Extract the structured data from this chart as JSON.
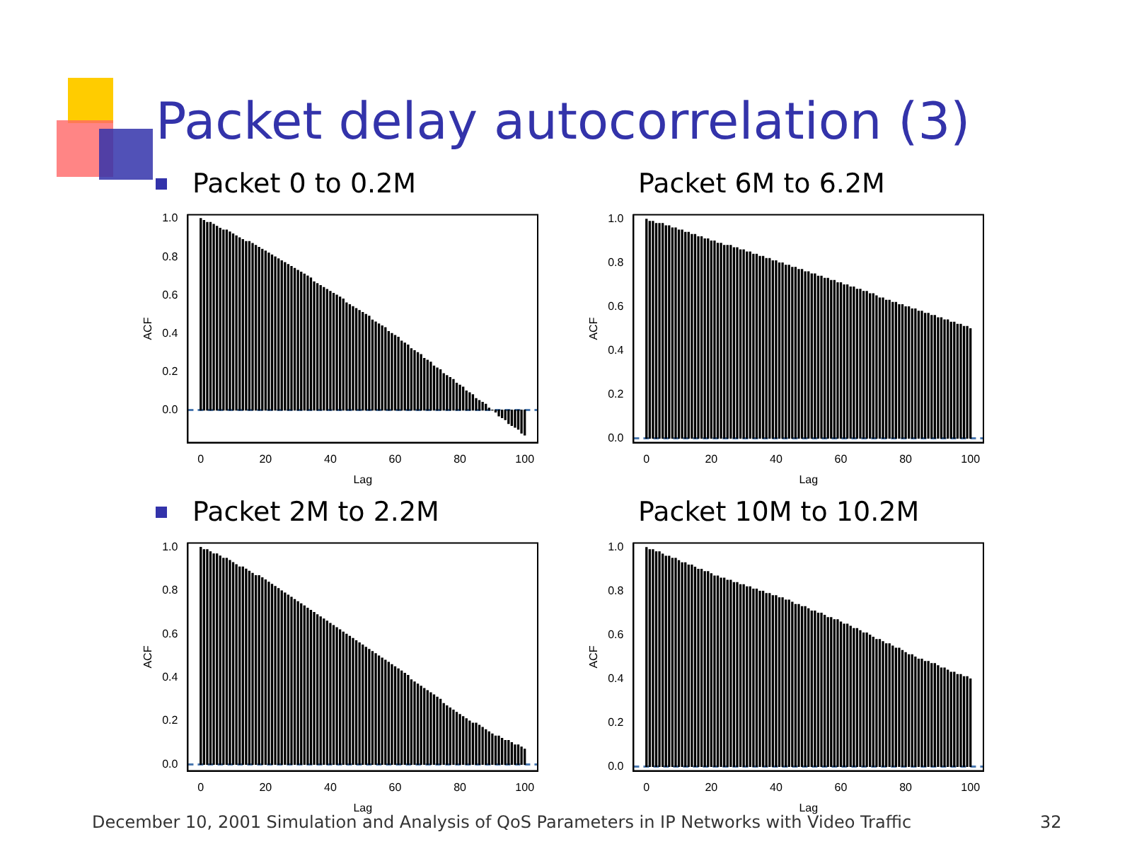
{
  "chart_data": [
    {
      "type": "bar",
      "title": "Packet 0 to 0.2M",
      "xlabel": "Lag",
      "ylabel": "ACF",
      "color": "#000000",
      "grid": false,
      "legend": false,
      "annotations": [
        "Packet delay autocorrelation (3)",
        "December 10, 2001 Simulation and Analysis of QoS Parameters in IP Networks with Video Traffic",
        "32"
      ],
      "xlim": [
        -4,
        104
      ],
      "xticks": [
        0,
        20,
        40,
        60,
        80,
        100
      ],
      "ylim": [
        -0.17,
        1.02
      ],
      "yticks": [
        {
          "value": 0,
          "label": "0.0"
        },
        {
          "value": 0.2,
          "label": "0.2"
        },
        {
          "value": 0.4,
          "label": "0.4"
        },
        {
          "value": 0.6,
          "label": "0.6"
        },
        {
          "value": 0.8,
          "label": "0.8"
        },
        {
          "value": 1,
          "label": "1.0"
        }
      ],
      "ref_lines": [
        {
          "axis": "y",
          "value": 0,
          "label": null,
          "color": "#4a78b0",
          "line_style": "dashed"
        }
      ],
      "x": [
        0,
        1,
        2,
        3,
        4,
        5,
        6,
        7,
        8,
        9,
        10,
        11,
        12,
        13,
        14,
        15,
        16,
        17,
        18,
        19,
        20,
        21,
        22,
        23,
        24,
        25,
        26,
        27,
        28,
        29,
        30,
        31,
        32,
        33,
        34,
        35,
        36,
        37,
        38,
        39,
        40,
        41,
        42,
        43,
        44,
        45,
        46,
        47,
        48,
        49,
        50,
        51,
        52,
        53,
        54,
        55,
        56,
        57,
        58,
        59,
        60,
        61,
        62,
        63,
        64,
        65,
        66,
        67,
        68,
        69,
        70,
        71,
        72,
        73,
        74,
        75,
        76,
        77,
        78,
        79,
        80,
        81,
        82,
        83,
        84,
        85,
        86,
        87,
        88,
        89,
        90,
        91,
        92,
        93,
        94,
        95,
        96,
        97,
        98,
        99,
        100
      ],
      "values": [
        1.0,
        0.99,
        0.98,
        0.98,
        0.97,
        0.96,
        0.95,
        0.94,
        0.94,
        0.93,
        0.92,
        0.91,
        0.9,
        0.89,
        0.88,
        0.88,
        0.87,
        0.86,
        0.85,
        0.84,
        0.83,
        0.82,
        0.81,
        0.8,
        0.79,
        0.78,
        0.77,
        0.76,
        0.75,
        0.74,
        0.73,
        0.72,
        0.71,
        0.7,
        0.69,
        0.67,
        0.66,
        0.65,
        0.64,
        0.63,
        0.62,
        0.61,
        0.6,
        0.59,
        0.58,
        0.56,
        0.55,
        0.54,
        0.53,
        0.52,
        0.51,
        0.5,
        0.49,
        0.47,
        0.46,
        0.45,
        0.44,
        0.43,
        0.41,
        0.4,
        0.39,
        0.38,
        0.36,
        0.35,
        0.34,
        0.32,
        0.31,
        0.3,
        0.29,
        0.27,
        0.26,
        0.25,
        0.23,
        0.22,
        0.21,
        0.19,
        0.18,
        0.17,
        0.16,
        0.14,
        0.13,
        0.12,
        0.1,
        0.09,
        0.08,
        0.06,
        0.05,
        0.04,
        0.03,
        0.01,
        0.0,
        -0.01,
        -0.03,
        -0.04,
        -0.05,
        -0.07,
        -0.08,
        -0.09,
        -0.1,
        -0.12,
        -0.13
      ]
    },
    {
      "type": "bar",
      "title": "Packet 6M to 6.2M",
      "xlabel": "Lag",
      "ylabel": "ACF",
      "color": "#000000",
      "grid": false,
      "legend": false,
      "xlim": [
        -4,
        104
      ],
      "xticks": [
        0,
        20,
        40,
        60,
        80,
        100
      ],
      "ylim": [
        -0.02,
        1.02
      ],
      "yticks": [
        {
          "value": 0,
          "label": "0.0"
        },
        {
          "value": 0.2,
          "label": "0.2"
        },
        {
          "value": 0.4,
          "label": "0.4"
        },
        {
          "value": 0.6,
          "label": "0.6"
        },
        {
          "value": 0.8,
          "label": "0.8"
        },
        {
          "value": 1,
          "label": "1.0"
        }
      ],
      "ref_lines": [
        {
          "axis": "y",
          "value": 0,
          "label": null,
          "color": "#4a78b0",
          "line_style": "dashed"
        }
      ],
      "x": [
        0,
        1,
        2,
        3,
        4,
        5,
        6,
        7,
        8,
        9,
        10,
        11,
        12,
        13,
        14,
        15,
        16,
        17,
        18,
        19,
        20,
        21,
        22,
        23,
        24,
        25,
        26,
        27,
        28,
        29,
        30,
        31,
        32,
        33,
        34,
        35,
        36,
        37,
        38,
        39,
        40,
        41,
        42,
        43,
        44,
        45,
        46,
        47,
        48,
        49,
        50,
        51,
        52,
        53,
        54,
        55,
        56,
        57,
        58,
        59,
        60,
        61,
        62,
        63,
        64,
        65,
        66,
        67,
        68,
        69,
        70,
        71,
        72,
        73,
        74,
        75,
        76,
        77,
        78,
        79,
        80,
        81,
        82,
        83,
        84,
        85,
        86,
        87,
        88,
        89,
        90,
        91,
        92,
        93,
        94,
        95,
        96,
        97,
        98,
        99,
        100
      ],
      "values": [
        1.0,
        0.99,
        0.99,
        0.98,
        0.98,
        0.98,
        0.97,
        0.97,
        0.96,
        0.96,
        0.95,
        0.95,
        0.94,
        0.94,
        0.93,
        0.93,
        0.92,
        0.92,
        0.91,
        0.91,
        0.9,
        0.9,
        0.89,
        0.89,
        0.88,
        0.88,
        0.88,
        0.87,
        0.87,
        0.86,
        0.86,
        0.85,
        0.85,
        0.84,
        0.84,
        0.83,
        0.83,
        0.82,
        0.82,
        0.81,
        0.81,
        0.8,
        0.8,
        0.79,
        0.79,
        0.78,
        0.78,
        0.77,
        0.77,
        0.76,
        0.76,
        0.75,
        0.75,
        0.74,
        0.74,
        0.73,
        0.73,
        0.72,
        0.72,
        0.71,
        0.71,
        0.7,
        0.7,
        0.69,
        0.69,
        0.68,
        0.68,
        0.67,
        0.67,
        0.66,
        0.66,
        0.65,
        0.64,
        0.64,
        0.63,
        0.63,
        0.62,
        0.62,
        0.61,
        0.61,
        0.6,
        0.6,
        0.59,
        0.59,
        0.58,
        0.58,
        0.57,
        0.57,
        0.56,
        0.56,
        0.55,
        0.55,
        0.54,
        0.54,
        0.53,
        0.53,
        0.52,
        0.52,
        0.51,
        0.51,
        0.5
      ]
    },
    {
      "type": "bar",
      "title": "Packet 2M to 2.2M",
      "xlabel": "Lag",
      "ylabel": "ACF",
      "color": "#000000",
      "grid": false,
      "legend": false,
      "xlim": [
        -4,
        104
      ],
      "xticks": [
        0,
        20,
        40,
        60,
        80,
        100
      ],
      "ylim": [
        -0.03,
        1.02
      ],
      "yticks": [
        {
          "value": 0,
          "label": "0.0"
        },
        {
          "value": 0.2,
          "label": "0.2"
        },
        {
          "value": 0.4,
          "label": "0.4"
        },
        {
          "value": 0.6,
          "label": "0.6"
        },
        {
          "value": 0.8,
          "label": "0.8"
        },
        {
          "value": 1,
          "label": "1.0"
        }
      ],
      "ref_lines": [
        {
          "axis": "y",
          "value": 0,
          "label": null,
          "color": "#4a78b0",
          "line_style": "dashed"
        }
      ],
      "x": [
        0,
        1,
        2,
        3,
        4,
        5,
        6,
        7,
        8,
        9,
        10,
        11,
        12,
        13,
        14,
        15,
        16,
        17,
        18,
        19,
        20,
        21,
        22,
        23,
        24,
        25,
        26,
        27,
        28,
        29,
        30,
        31,
        32,
        33,
        34,
        35,
        36,
        37,
        38,
        39,
        40,
        41,
        42,
        43,
        44,
        45,
        46,
        47,
        48,
        49,
        50,
        51,
        52,
        53,
        54,
        55,
        56,
        57,
        58,
        59,
        60,
        61,
        62,
        63,
        64,
        65,
        66,
        67,
        68,
        69,
        70,
        71,
        72,
        73,
        74,
        75,
        76,
        77,
        78,
        79,
        80,
        81,
        82,
        83,
        84,
        85,
        86,
        87,
        88,
        89,
        90,
        91,
        92,
        93,
        94,
        95,
        96,
        97,
        98,
        99,
        100
      ],
      "values": [
        1.0,
        0.99,
        0.99,
        0.98,
        0.97,
        0.97,
        0.96,
        0.95,
        0.95,
        0.94,
        0.93,
        0.92,
        0.91,
        0.91,
        0.9,
        0.89,
        0.88,
        0.87,
        0.87,
        0.86,
        0.85,
        0.84,
        0.83,
        0.82,
        0.81,
        0.8,
        0.79,
        0.78,
        0.77,
        0.76,
        0.75,
        0.74,
        0.73,
        0.72,
        0.71,
        0.7,
        0.69,
        0.68,
        0.67,
        0.66,
        0.65,
        0.64,
        0.63,
        0.62,
        0.61,
        0.6,
        0.59,
        0.58,
        0.57,
        0.56,
        0.55,
        0.54,
        0.53,
        0.52,
        0.51,
        0.5,
        0.49,
        0.48,
        0.47,
        0.46,
        0.45,
        0.44,
        0.43,
        0.42,
        0.41,
        0.39,
        0.38,
        0.37,
        0.36,
        0.35,
        0.34,
        0.33,
        0.32,
        0.31,
        0.3,
        0.28,
        0.27,
        0.26,
        0.25,
        0.24,
        0.23,
        0.22,
        0.21,
        0.2,
        0.19,
        0.19,
        0.18,
        0.17,
        0.16,
        0.15,
        0.14,
        0.13,
        0.13,
        0.12,
        0.11,
        0.11,
        0.1,
        0.09,
        0.09,
        0.08,
        0.07
      ]
    },
    {
      "type": "bar",
      "title": "Packet 10M to 10.2M",
      "xlabel": "Lag",
      "ylabel": "ACF",
      "color": "#000000",
      "grid": false,
      "legend": false,
      "xlim": [
        -4,
        104
      ],
      "xticks": [
        0,
        20,
        40,
        60,
        80,
        100
      ],
      "ylim": [
        -0.02,
        1.02
      ],
      "yticks": [
        {
          "value": 0,
          "label": "0.0"
        },
        {
          "value": 0.2,
          "label": "0.2"
        },
        {
          "value": 0.4,
          "label": "0.4"
        },
        {
          "value": 0.6,
          "label": "0.6"
        },
        {
          "value": 0.8,
          "label": "0.8"
        },
        {
          "value": 1,
          "label": "1.0"
        }
      ],
      "ref_lines": [
        {
          "axis": "y",
          "value": 0,
          "label": null,
          "color": "#4a78b0",
          "line_style": "dashed"
        }
      ],
      "x": [
        0,
        1,
        2,
        3,
        4,
        5,
        6,
        7,
        8,
        9,
        10,
        11,
        12,
        13,
        14,
        15,
        16,
        17,
        18,
        19,
        20,
        21,
        22,
        23,
        24,
        25,
        26,
        27,
        28,
        29,
        30,
        31,
        32,
        33,
        34,
        35,
        36,
        37,
        38,
        39,
        40,
        41,
        42,
        43,
        44,
        45,
        46,
        47,
        48,
        49,
        50,
        51,
        52,
        53,
        54,
        55,
        56,
        57,
        58,
        59,
        60,
        61,
        62,
        63,
        64,
        65,
        66,
        67,
        68,
        69,
        70,
        71,
        72,
        73,
        74,
        75,
        76,
        77,
        78,
        79,
        80,
        81,
        82,
        83,
        84,
        85,
        86,
        87,
        88,
        89,
        90,
        91,
        92,
        93,
        94,
        95,
        96,
        97,
        98,
        99,
        100
      ],
      "values": [
        1.0,
        0.99,
        0.99,
        0.98,
        0.98,
        0.97,
        0.96,
        0.96,
        0.95,
        0.95,
        0.94,
        0.93,
        0.93,
        0.92,
        0.92,
        0.91,
        0.9,
        0.9,
        0.89,
        0.89,
        0.88,
        0.87,
        0.87,
        0.86,
        0.86,
        0.85,
        0.85,
        0.84,
        0.84,
        0.83,
        0.83,
        0.82,
        0.82,
        0.81,
        0.81,
        0.8,
        0.8,
        0.79,
        0.79,
        0.78,
        0.78,
        0.77,
        0.77,
        0.76,
        0.76,
        0.75,
        0.74,
        0.74,
        0.73,
        0.73,
        0.72,
        0.71,
        0.71,
        0.7,
        0.7,
        0.69,
        0.68,
        0.68,
        0.67,
        0.67,
        0.66,
        0.65,
        0.65,
        0.64,
        0.63,
        0.63,
        0.62,
        0.61,
        0.61,
        0.6,
        0.59,
        0.58,
        0.58,
        0.57,
        0.56,
        0.56,
        0.55,
        0.54,
        0.54,
        0.53,
        0.52,
        0.51,
        0.51,
        0.5,
        0.49,
        0.49,
        0.48,
        0.48,
        0.47,
        0.47,
        0.46,
        0.45,
        0.45,
        0.44,
        0.43,
        0.43,
        0.42,
        0.42,
        0.41,
        0.41,
        0.4
      ]
    }
  ]
}
